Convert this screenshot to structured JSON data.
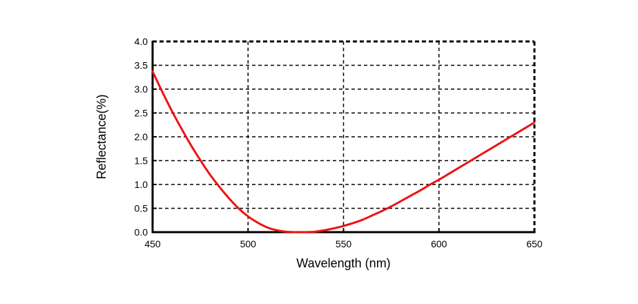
{
  "chart_data": {
    "type": "line",
    "title": "",
    "xlabel": "Wavelength (nm)",
    "ylabel": "Reflectance(%)",
    "xlim": [
      450,
      650
    ],
    "ylim": [
      0.0,
      4.0
    ],
    "x_ticks": [
      "450",
      "500",
      "550",
      "600",
      "650"
    ],
    "y_ticks": [
      "0.0",
      "0.5",
      "1.0",
      "1.5",
      "2.0",
      "2.5",
      "3.0",
      "3.5",
      "4.0"
    ],
    "grid": true,
    "legend": "none",
    "series": [
      {
        "color": "#ee1111",
        "x": [
          450,
          455,
          460,
          465,
          470,
          475,
          480,
          485,
          490,
          495,
          500,
          505,
          510,
          515,
          520,
          525,
          530,
          535,
          540,
          545,
          550,
          555,
          560,
          565,
          570,
          575,
          580,
          585,
          590,
          595,
          600,
          605,
          610,
          615,
          620,
          625,
          630,
          635,
          640,
          645,
          650
        ],
        "y": [
          3.37,
          2.95,
          2.55,
          2.18,
          1.83,
          1.51,
          1.21,
          0.95,
          0.71,
          0.5,
          0.33,
          0.2,
          0.1,
          0.04,
          0.01,
          0.0,
          0.0,
          0.01,
          0.04,
          0.08,
          0.13,
          0.19,
          0.26,
          0.35,
          0.44,
          0.54,
          0.65,
          0.76,
          0.87,
          0.99,
          1.1,
          1.22,
          1.34,
          1.46,
          1.58,
          1.7,
          1.82,
          1.94,
          2.06,
          2.18,
          2.3
        ]
      }
    ]
  }
}
